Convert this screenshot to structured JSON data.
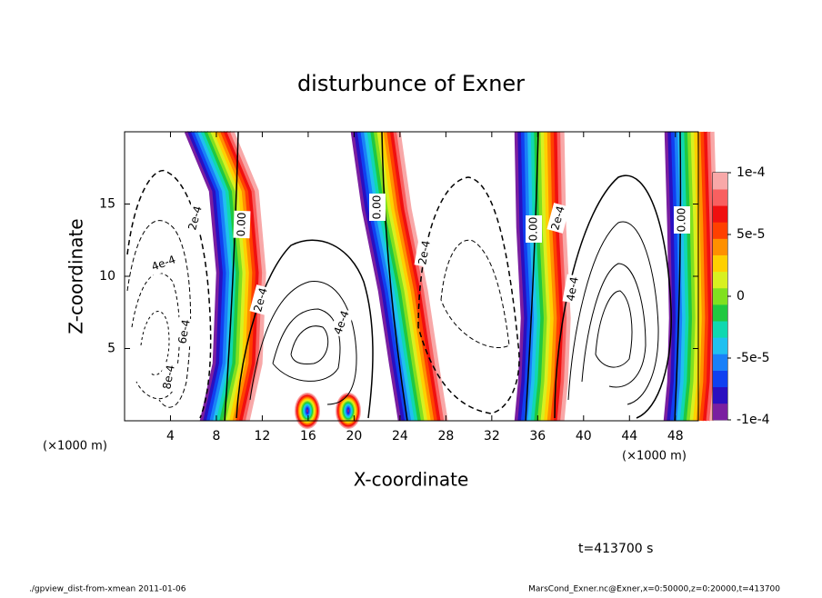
{
  "chart_data": {
    "type": "contour",
    "title": "disturbunce of Exner",
    "x_label": "X-coordinate",
    "y_label": "Z-coordinate",
    "x_unit_label": "(×1000 m)",
    "xlim": [
      0,
      50
    ],
    "xticks": [
      4,
      8,
      12,
      16,
      20,
      24,
      28,
      32,
      36,
      40,
      44,
      48
    ],
    "ylim": [
      0,
      20
    ],
    "yticks": [
      5,
      10,
      15
    ],
    "colorbar": {
      "lim": [
        -0.0001,
        0.0001
      ],
      "ticks": [
        {
          "value": 0.0001,
          "label": "1e-4"
        },
        {
          "value": 5e-05,
          "label": "5e-5"
        },
        {
          "value": 0,
          "label": "0"
        },
        {
          "value": -5e-05,
          "label": "-5e-5"
        },
        {
          "value": -0.0001,
          "label": "-1e-4"
        }
      ],
      "colors": [
        "#7a1fa0",
        "#2a0fc0",
        "#1040f0",
        "#1a80f8",
        "#20c0f0",
        "#10d8b0",
        "#20c840",
        "#80e020",
        "#d8f020",
        "#ffd000",
        "#ff9000",
        "#ff4000",
        "#f01010",
        "#f86060",
        "#f8a8a8"
      ]
    },
    "contour_labels": [
      "2e-4",
      "0.00",
      "4e-4",
      "6e-4",
      "8e-4",
      "2e-4",
      "4e-4",
      "0.00",
      "2e-4",
      "0.00",
      "2e-4",
      "4e-4",
      "0.00"
    ],
    "time_label": "t=413700 s",
    "footer_left": "./gpview_dist-from-xmean  2011-01-06",
    "footer_right": "MarsCond_Exner.nc@Exner,x=0:50000,z=0:20000,t=413700"
  }
}
